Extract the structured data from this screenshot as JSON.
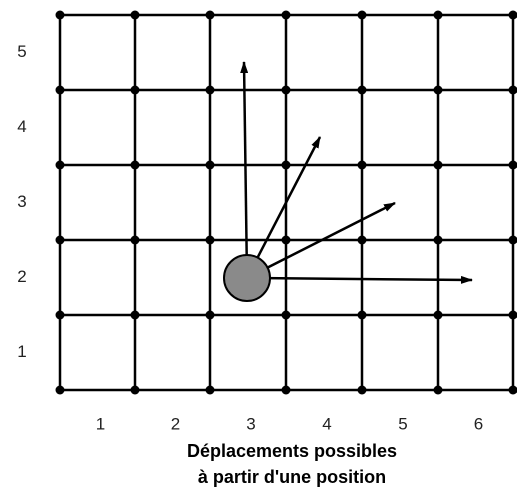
{
  "y_labels": [
    "5",
    "4",
    "3",
    "2",
    "1"
  ],
  "x_labels": [
    "1",
    "2",
    "3",
    "4",
    "5",
    "6"
  ],
  "caption": [
    "Déplacements possibles",
    "à partir d'une position"
  ]
}
